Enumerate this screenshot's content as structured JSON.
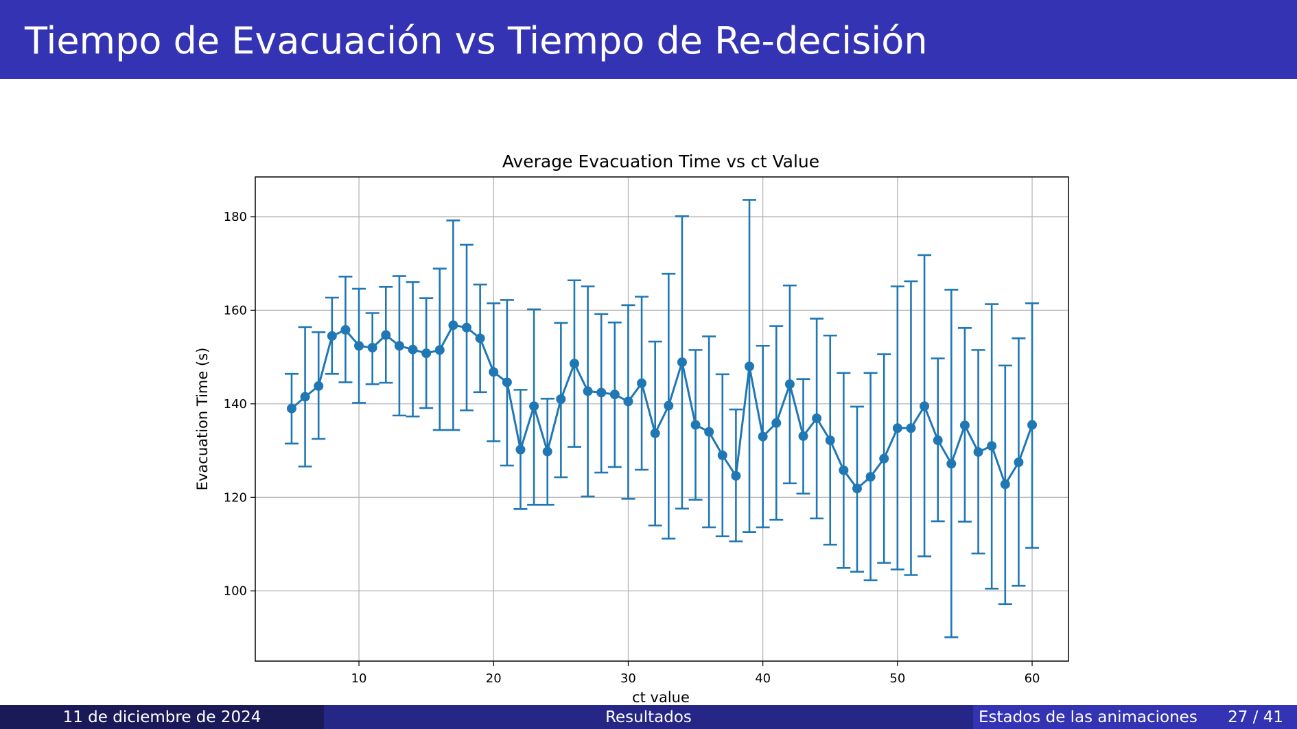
{
  "slide": {
    "title": "Tiempo de Evacuación vs Tiempo de Re-decisión"
  },
  "footer": {
    "date": "11 de diciembre de 2024",
    "section": "Resultados",
    "subsection": "Estados de las animaciones",
    "page": "27 / 41"
  },
  "colors": {
    "header": "#3333b3",
    "footer_dark": "#1a1a59",
    "footer_mid": "#262686",
    "series": "#1f77b4"
  },
  "chart_data": {
    "type": "line",
    "title": "Average Evacuation Time vs ct Value",
    "xlabel": "ct value",
    "ylabel": "Evacuation Time (s)",
    "xlim": [
      2.3,
      62.7
    ],
    "ylim": [
      85,
      188.5
    ],
    "xticks": [
      10,
      20,
      30,
      40,
      50,
      60
    ],
    "yticks": [
      100,
      120,
      140,
      160,
      180
    ],
    "grid": true,
    "marker": "circle",
    "error_bars": true,
    "x": [
      5,
      6,
      7,
      8,
      9,
      10,
      11,
      12,
      13,
      14,
      15,
      16,
      17,
      18,
      19,
      20,
      21,
      22,
      23,
      24,
      25,
      26,
      27,
      28,
      29,
      30,
      31,
      32,
      33,
      34,
      35,
      36,
      37,
      38,
      39,
      40,
      41,
      42,
      43,
      44,
      45,
      46,
      47,
      48,
      49,
      50,
      51,
      52,
      53,
      54,
      55,
      56,
      57,
      58,
      59,
      60
    ],
    "y": [
      139.0,
      141.5,
      143.8,
      154.5,
      155.8,
      152.4,
      152.0,
      154.7,
      152.4,
      151.6,
      150.8,
      151.5,
      156.8,
      156.3,
      154.0,
      146.8,
      144.6,
      130.2,
      139.5,
      129.8,
      141.0,
      148.6,
      142.7,
      142.4,
      142.0,
      140.5,
      144.4,
      133.7,
      139.6,
      148.9,
      135.5,
      134.0,
      129.0,
      124.6,
      148.0,
      133.0,
      135.9,
      144.2,
      133.1,
      136.9,
      132.2,
      125.8,
      121.9,
      124.4,
      128.3,
      134.8,
      134.8,
      139.5,
      132.2,
      127.2,
      135.4,
      129.7,
      131.0,
      122.8,
      127.5,
      135.5
    ],
    "yerr_low": [
      131.5,
      126.6,
      132.5,
      146.4,
      144.6,
      140.2,
      144.2,
      144.5,
      137.5,
      137.3,
      139.1,
      134.4,
      134.4,
      138.6,
      142.5,
      132.0,
      126.8,
      117.5,
      118.4,
      118.4,
      124.3,
      130.8,
      120.2,
      125.3,
      126.5,
      119.7,
      125.9,
      114.0,
      111.2,
      117.6,
      119.5,
      113.6,
      111.7,
      110.6,
      112.6,
      113.6,
      115.2,
      123.0,
      120.8,
      115.5,
      109.9,
      104.9,
      104.1,
      102.3,
      106.0,
      104.6,
      103.4,
      107.4,
      114.9,
      90.1,
      114.8,
      108.0,
      100.5,
      97.2,
      101.1,
      109.2
    ],
    "yerr_high": [
      146.4,
      156.4,
      155.3,
      162.7,
      167.2,
      164.6,
      159.4,
      165.0,
      167.3,
      166.0,
      162.6,
      168.9,
      179.2,
      174.0,
      165.5,
      161.5,
      162.2,
      143.0,
      160.2,
      141.1,
      157.3,
      166.4,
      165.1,
      159.2,
      157.4,
      161.1,
      162.9,
      153.3,
      167.8,
      180.1,
      151.5,
      154.4,
      146.3,
      138.8,
      183.6,
      152.4,
      156.6,
      165.3,
      145.3,
      158.2,
      154.6,
      146.6,
      139.4,
      146.6,
      150.6,
      165.1,
      166.2,
      171.8,
      149.7,
      164.4,
      156.2,
      151.5,
      161.3,
      148.2,
      154.0,
      161.5
    ]
  }
}
